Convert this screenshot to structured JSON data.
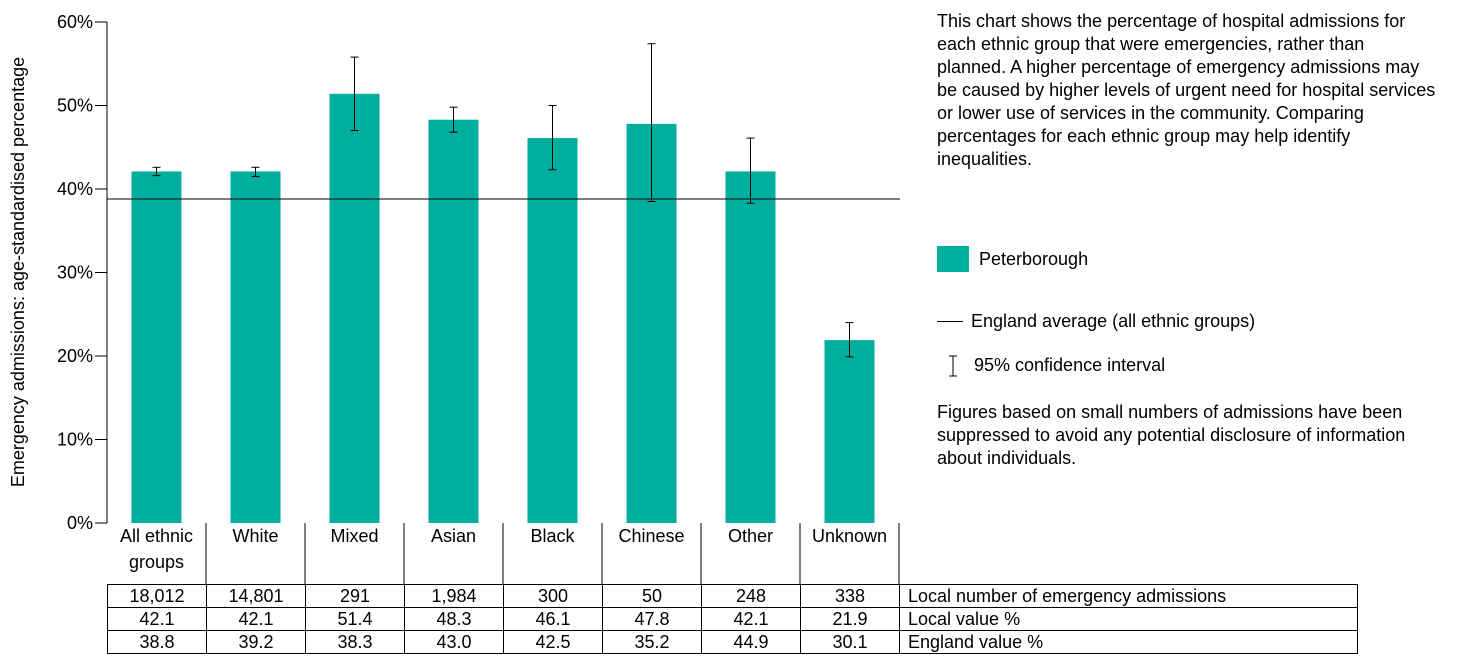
{
  "chart_data": {
    "type": "bar",
    "ylabel": "Emergency admissions: age-standardised percentage",
    "ylim": [
      0,
      60
    ],
    "yticks": [
      "0%",
      "10%",
      "20%",
      "30%",
      "40%",
      "50%",
      "60%"
    ],
    "ytick_values": [
      0,
      10,
      20,
      30,
      40,
      50,
      60
    ],
    "categories": [
      "All ethnic groups",
      "White",
      "Mixed",
      "Asian",
      "Black",
      "Chinese",
      "Other",
      "Unknown"
    ],
    "series": [
      {
        "name": "Peterborough",
        "color": "#00ae9f",
        "values": [
          42.1,
          42.1,
          51.4,
          48.3,
          46.1,
          47.8,
          42.1,
          21.9
        ],
        "ci_lower": [
          41.6,
          41.5,
          47.0,
          46.8,
          42.3,
          38.5,
          38.3,
          19.9
        ],
        "ci_upper": [
          42.6,
          42.6,
          55.8,
          49.8,
          50.0,
          57.4,
          46.1,
          24.0
        ]
      }
    ],
    "reference_line": {
      "value": 38.8,
      "name": "England average (all ethnic groups)"
    },
    "grid": false,
    "legend_position": "right"
  },
  "legend": {
    "bar_label": "Peterborough",
    "line_label": "England average (all ethnic groups)",
    "ci_label": "95% confidence interval"
  },
  "description": "This chart shows the percentage of hospital admissions for each ethnic group that were emergencies, rather than planned. A higher percentage of emergency admissions may be caused by higher levels of urgent need for hospital services or lower use of services in the community. Comparing percentages for each ethnic group may help identify inequalities.",
  "footnote": "Figures based on small numbers of admissions have been suppressed to avoid any potential disclosure of information about individuals.",
  "table": {
    "rows": [
      {
        "label": "Local number of emergency admissions",
        "values": [
          "18,012",
          "14,801",
          "291",
          "1,984",
          "300",
          "50",
          "248",
          "338"
        ]
      },
      {
        "label": "Local value %",
        "values": [
          "42.1",
          "42.1",
          "51.4",
          "48.3",
          "46.1",
          "47.8",
          "42.1",
          "21.9"
        ]
      },
      {
        "label": "England value %",
        "values": [
          "38.8",
          "39.2",
          "38.3",
          "43.0",
          "42.5",
          "35.2",
          "44.9",
          "30.1"
        ]
      }
    ]
  }
}
